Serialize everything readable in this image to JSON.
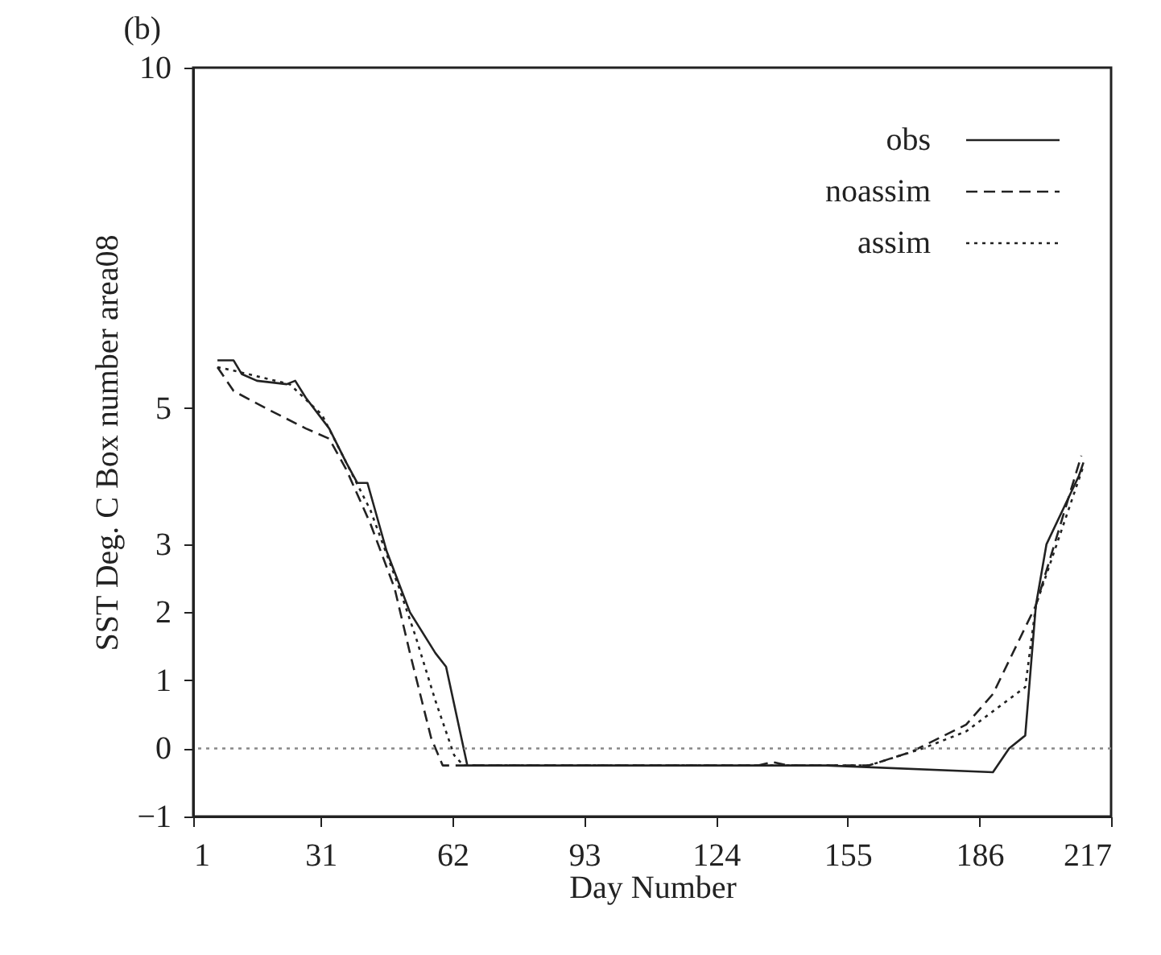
{
  "chart_data": {
    "type": "line",
    "title": "(b)",
    "xlabel": "Day Number",
    "ylabel": "SST Deg. C Box number area08",
    "xlim": [
      1,
      217
    ],
    "xticks": [
      1,
      31,
      62,
      93,
      124,
      155,
      186,
      217
    ],
    "ylim": [
      -1,
      10
    ],
    "yticks": [
      -1,
      0,
      1,
      2,
      3,
      5,
      10
    ],
    "grid": false,
    "legend": "top right",
    "series": [
      {
        "name": "obs",
        "color": "#222222",
        "line_style": "solid",
        "x": [
          6.7,
          10.5,
          12.4,
          16,
          23,
          25,
          27.5,
          33,
          37,
          39.6,
          42,
          46.5,
          52,
          58,
          60.5,
          65.5,
          100,
          150,
          189.2,
          193,
          196.8,
          199.3,
          201.8,
          209.4,
          210.5
        ],
        "values": [
          5.7,
          5.7,
          5.5,
          5.4,
          5.35,
          5.4,
          5.15,
          4.7,
          4.2,
          3.9,
          3.9,
          2.9,
          2.0,
          1.4,
          1.2,
          -0.25,
          -0.25,
          -0.25,
          -0.35,
          0,
          0.19,
          2.1,
          3.0,
          4.0,
          4.2
        ]
      },
      {
        "name": "noassim",
        "color": "#222222",
        "line_style": "dashed",
        "x": [
          6.7,
          10.5,
          18,
          27.5,
          33,
          37,
          42.7,
          48.4,
          52,
          54.8,
          57,
          59.7,
          100,
          134,
          137.4,
          141,
          160,
          170,
          182.9,
          189.2,
          199.3,
          210
        ],
        "values": [
          5.6,
          5.25,
          5.0,
          4.7,
          4.55,
          4.1,
          3.3,
          2.35,
          1.4,
          0.7,
          0.15,
          -0.25,
          -0.25,
          -0.25,
          -0.2,
          -0.25,
          -0.25,
          -0.05,
          0.35,
          0.8,
          2.1,
          4.3
        ]
      },
      {
        "name": "assim",
        "color": "#222222",
        "line_style": "dotted",
        "x": [
          6.7,
          10.5,
          23.7,
          31.3,
          37,
          42.7,
          49.5,
          53.3,
          58,
          62.4,
          64.6,
          100,
          160,
          172.7,
          182.9,
          196.8,
          199.3,
          210.5
        ],
        "values": [
          5.6,
          5.55,
          5.35,
          4.9,
          4.2,
          3.5,
          2.35,
          1.65,
          0.7,
          -0.1,
          -0.25,
          -0.25,
          -0.25,
          0,
          0.25,
          0.9,
          2.1,
          4.15
        ]
      }
    ],
    "ref_lines": [
      {
        "axis": "y",
        "value": 0,
        "label": null,
        "color": "#888888",
        "line_style": "dotted"
      }
    ]
  }
}
